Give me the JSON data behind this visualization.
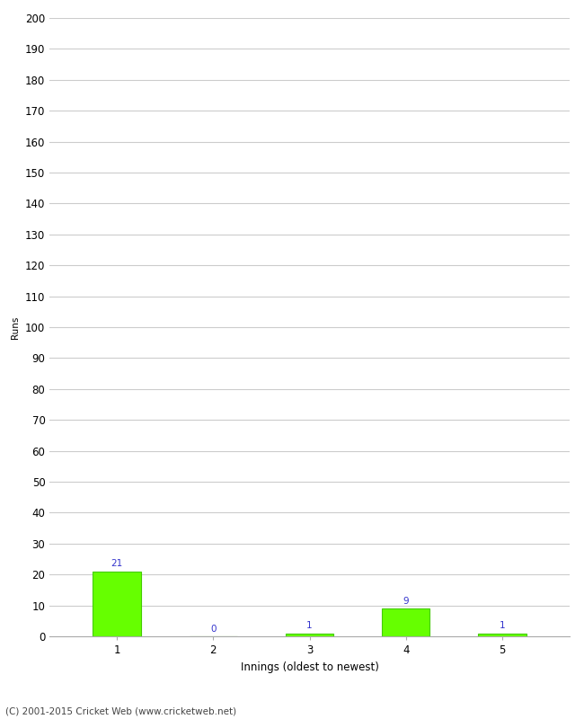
{
  "xlabel": "Innings (oldest to newest)",
  "ylabel": "Runs",
  "categories": [
    1,
    2,
    3,
    4,
    5
  ],
  "values": [
    21,
    0,
    1,
    9,
    1
  ],
  "bar_color": "#66ff00",
  "bar_edge_color": "#44cc00",
  "label_color": "#3333cc",
  "ylim": [
    0,
    200
  ],
  "yticks": [
    0,
    10,
    20,
    30,
    40,
    50,
    60,
    70,
    80,
    90,
    100,
    110,
    120,
    130,
    140,
    150,
    160,
    170,
    180,
    190,
    200
  ],
  "footer": "(C) 2001-2015 Cricket Web (www.cricketweb.net)",
  "background_color": "#ffffff",
  "grid_color": "#cccccc",
  "label_fontsize": 7.5,
  "axis_fontsize": 8.5,
  "ylabel_fontsize": 7.5,
  "footer_fontsize": 7.5
}
